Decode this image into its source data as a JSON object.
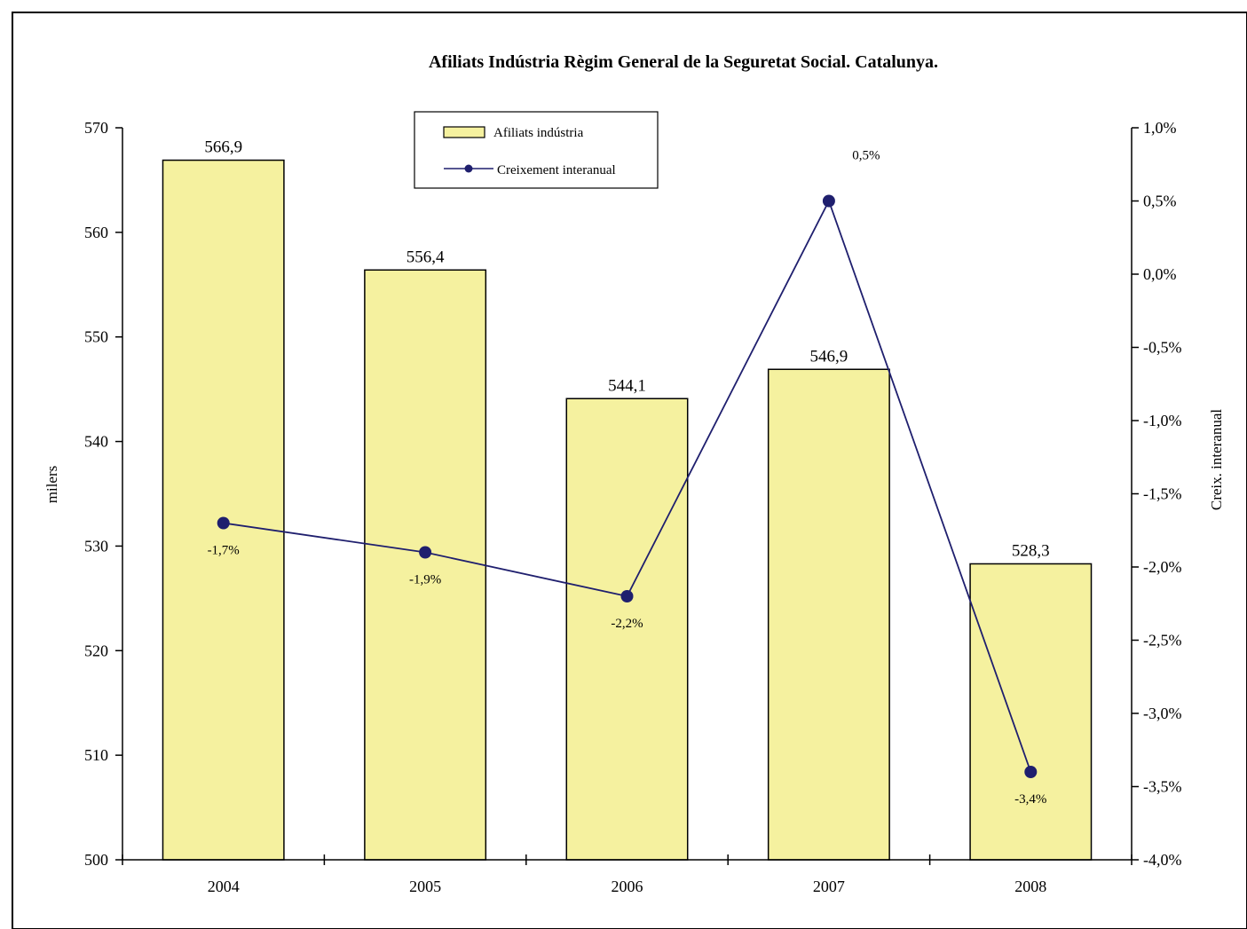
{
  "chart_data": {
    "type": "bar",
    "title": "Afiliats Indústria Règim General de la Seguretat Social. Catalunya.",
    "categories": [
      "2004",
      "2005",
      "2006",
      "2007",
      "2008"
    ],
    "series": [
      {
        "name": "Afiliats indústria",
        "kind": "bar",
        "axis": "left",
        "values": [
          566.9,
          556.4,
          544.1,
          546.9,
          528.3
        ],
        "labels": [
          "566,9",
          "556,4",
          "544,1",
          "546,9",
          "528,3"
        ],
        "color": "#f5f19f"
      },
      {
        "name": "Creixement interanual",
        "kind": "line",
        "axis": "right",
        "values": [
          -1.7,
          -1.9,
          -2.2,
          0.5,
          -3.4
        ],
        "labels": [
          "-1,7%",
          "-1,9%",
          "-2,2%",
          "0,5%",
          "-3,4%"
        ],
        "color": "#1f1f6e"
      }
    ],
    "ylabel": "milers",
    "y2label": "Creix. interanual",
    "ylim": [
      500,
      570
    ],
    "y2lim": [
      -4.0,
      1.0
    ],
    "yticks": [
      "500",
      "510",
      "520",
      "530",
      "540",
      "550",
      "560",
      "570"
    ],
    "y2ticks": [
      "-4,0%",
      "-3,5%",
      "-3,0%",
      "-2,5%",
      "-2,0%",
      "-1,5%",
      "-1,0%",
      "-0,5%",
      "0,0%",
      "0,5%",
      "1,0%"
    ],
    "grid": false,
    "legend_position": "top-center"
  }
}
